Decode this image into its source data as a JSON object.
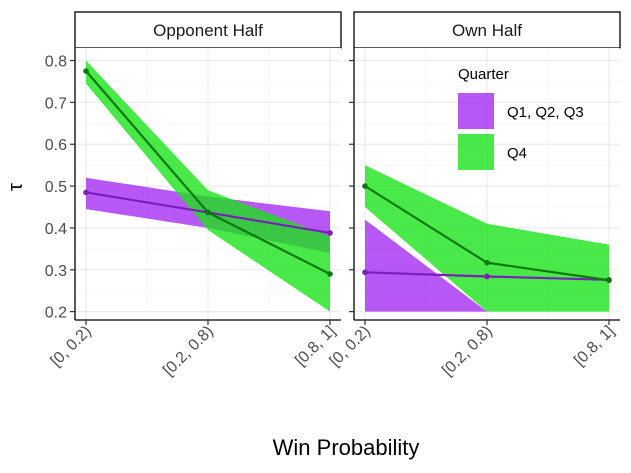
{
  "chart_data": {
    "type": "line",
    "xlabel": "Win Probability",
    "ylabel": "τ",
    "categories": [
      "[0, 0.2)",
      "[0.2, 0.8)",
      "[0.8, 1]"
    ],
    "ylim": [
      0.18,
      0.83
    ],
    "yticks": [
      "0.2",
      "0.3",
      "0.4",
      "0.5",
      "0.6",
      "0.7",
      "0.8"
    ],
    "grid": true,
    "legend": {
      "title": "Quarter",
      "placement": "inside top-right of Own Half panel",
      "entries": [
        "Q1, Q2, Q3",
        "Q4"
      ]
    },
    "colors": {
      "Q1, Q2, Q3_fill": "#a020f0",
      "Q1, Q2, Q3_line": "#7a1fb8",
      "Q4_fill": "#1ae41a",
      "Q4_line": "#0b7a0b",
      "strip_bg": "#ffffff",
      "grid": "#ebebeb"
    },
    "panels": [
      {
        "title": "Opponent Half",
        "series": [
          {
            "name": "Q1, Q2, Q3",
            "values": [
              0.485,
              0.437,
              0.388
            ],
            "lower": [
              0.445,
              0.4,
              0.34
            ],
            "upper": [
              0.52,
              0.475,
              0.44
            ]
          },
          {
            "name": "Q4",
            "values": [
              0.775,
              0.437,
              0.29
            ],
            "lower": [
              0.745,
              0.395,
              0.2
            ],
            "upper": [
              0.8,
              0.49,
              0.38
            ]
          }
        ]
      },
      {
        "title": "Own Half",
        "series": [
          {
            "name": "Q1, Q2, Q3",
            "values": [
              0.294,
              0.284,
              0.276
            ],
            "lower": [
              0.2,
              0.2,
              0.2
            ],
            "upper": [
              0.42,
              0.2,
              0.2
            ]
          },
          {
            "name": "Q4",
            "values": [
              0.5,
              0.317,
              0.275
            ],
            "lower": [
              0.45,
              0.2,
              0.2
            ],
            "upper": [
              0.55,
              0.41,
              0.36
            ]
          }
        ]
      }
    ]
  }
}
